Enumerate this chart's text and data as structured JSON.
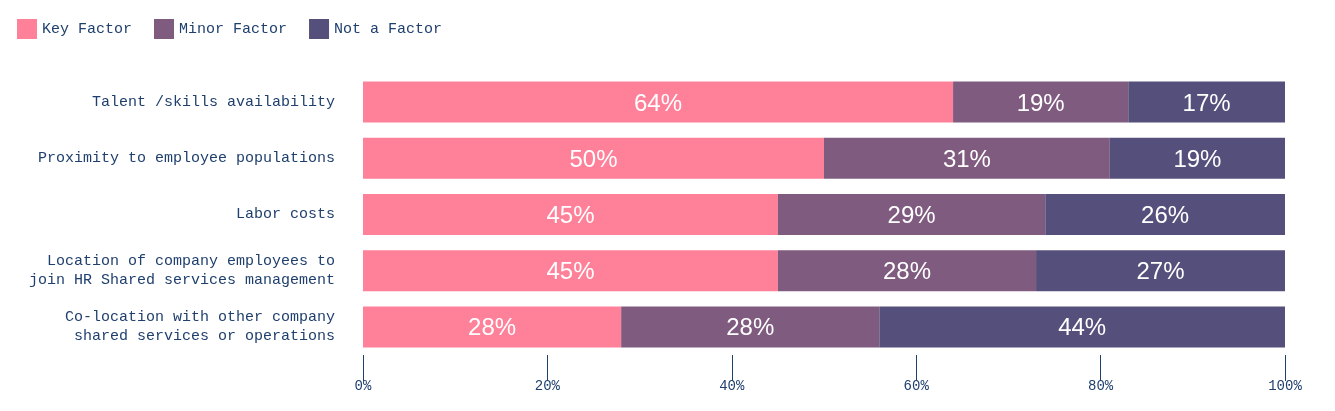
{
  "chart_data": {
    "type": "bar",
    "orientation": "horizontal",
    "stacked": true,
    "legend": "top left",
    "grid": false,
    "categories": [
      "Talent /skills availability",
      "Proximity to employee populations",
      "Labor costs",
      "Location of company employees to\njoin HR Shared services management",
      "Co-location with other company\nshared services or operations"
    ],
    "series": [
      {
        "name": "Key Factor",
        "color": "#ff8099",
        "values": [
          64,
          50,
          45,
          45,
          28
        ],
        "value_labels": [
          "64%",
          "50%",
          "45%",
          "45%",
          "28%"
        ]
      },
      {
        "name": "Minor Factor",
        "color": "#7f5b80",
        "values": [
          19,
          31,
          29,
          28,
          28
        ],
        "value_labels": [
          "19%",
          "31%",
          "29%",
          "28%",
          "28%"
        ]
      },
      {
        "name": "Not a Factor",
        "color": "#54507b",
        "values": [
          17,
          19,
          26,
          27,
          44
        ],
        "value_labels": [
          "17%",
          "19%",
          "26%",
          "27%",
          "44%"
        ]
      }
    ],
    "xlim": [
      0,
      100
    ],
    "xticks": [
      {
        "value": 0,
        "label": "0%"
      },
      {
        "value": 20,
        "label": "20%"
      },
      {
        "value": 40,
        "label": "40%"
      },
      {
        "value": 60,
        "label": "60%"
      },
      {
        "value": 80,
        "label": "80%"
      },
      {
        "value": 100,
        "label": "100%"
      }
    ]
  }
}
